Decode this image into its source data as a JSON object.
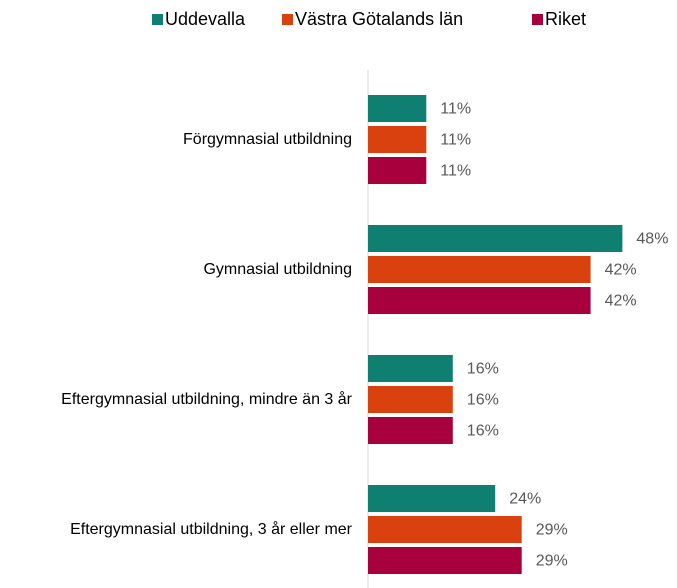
{
  "chart_data": {
    "type": "bar",
    "orientation": "horizontal",
    "categories": [
      "Förgymnasial utbildning",
      "Gymnasial utbildning",
      "Eftergymnasial utbildning, mindre än 3 år",
      "Eftergymnasial utbildning, 3 år eller mer"
    ],
    "series": [
      {
        "name": "Uddevalla",
        "color": "#0f7f71",
        "values": [
          11,
          48,
          16,
          24
        ],
        "value_labels": [
          "11%",
          "48%",
          "16%",
          "24%"
        ]
      },
      {
        "name": "Västra Götalands län",
        "color": "#d9420f",
        "values": [
          11,
          42,
          16,
          29
        ],
        "value_labels": [
          "11%",
          "42%",
          "16%",
          "29%"
        ]
      },
      {
        "name": "Riket",
        "color": "#a8003d",
        "values": [
          11,
          42,
          16,
          29
        ],
        "value_labels": [
          "11%",
          "42%",
          "16%",
          "29%"
        ]
      }
    ],
    "legend": "top"
  }
}
